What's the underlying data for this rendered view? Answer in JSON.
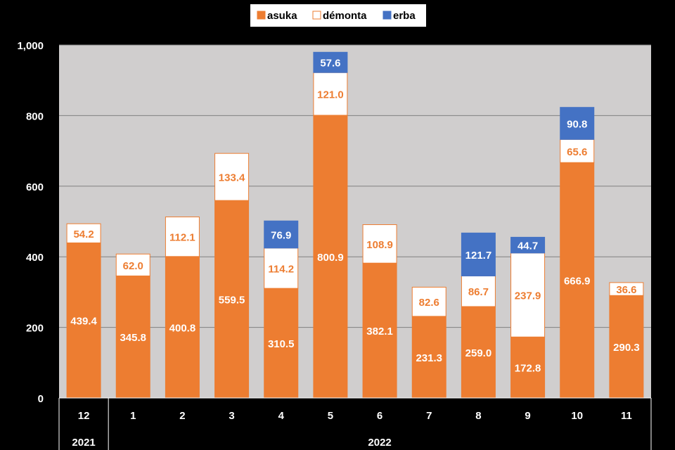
{
  "colors": {
    "asuka": "#ED7D31",
    "demonta": "#FFFFFF",
    "demonta_border": "#ED7D31",
    "erba": "#4472C4",
    "plot_bg": "#D0CECE",
    "page_bg": "#000000"
  },
  "chart_data": {
    "type": "bar",
    "stacked": true,
    "categories": [
      "12",
      "1",
      "2",
      "3",
      "4",
      "5",
      "6",
      "7",
      "8",
      "9",
      "10",
      "11"
    ],
    "year_groups": [
      {
        "label": "2021",
        "count": 1
      },
      {
        "label": "2022",
        "count": 11
      }
    ],
    "series": [
      {
        "name": "asuka",
        "values": [
          439.4,
          345.8,
          400.8,
          559.5,
          310.5,
          800.9,
          382.1,
          231.3,
          259.0,
          172.8,
          666.9,
          290.3
        ],
        "labels": [
          "439.4",
          "345.8",
          "400.8",
          "559.5",
          "310.5",
          "800.9",
          "382.1",
          "231.3",
          "259.0",
          "172.8",
          "666.9",
          "290.3"
        ]
      },
      {
        "name": "démonta",
        "values": [
          54.2,
          62.0,
          112.1,
          133.4,
          114.2,
          121.0,
          108.9,
          82.6,
          86.7,
          237.9,
          65.6,
          36.6
        ],
        "labels": [
          "54.2",
          "62.0",
          "112.1",
          "133.4",
          "114.2",
          "121.0",
          "108.9",
          "82.6",
          "86.7",
          "237.9",
          "65.6",
          "36.6"
        ]
      },
      {
        "name": "erba",
        "values": [
          0,
          0,
          0,
          0,
          76.9,
          57.6,
          0,
          0,
          121.7,
          44.7,
          90.8,
          0
        ],
        "labels": [
          "",
          "",
          "",
          "",
          "76.9",
          "57.6",
          "",
          "",
          "121.7",
          "44.7",
          "90.8",
          ""
        ]
      }
    ],
    "ylim": [
      0,
      1000
    ],
    "yticks": [
      0,
      200,
      400,
      600,
      800,
      1000
    ],
    "ytick_labels": [
      "0",
      "200",
      "400",
      "600",
      "800",
      "1,000"
    ],
    "grid": true,
    "legend": "top-center"
  }
}
